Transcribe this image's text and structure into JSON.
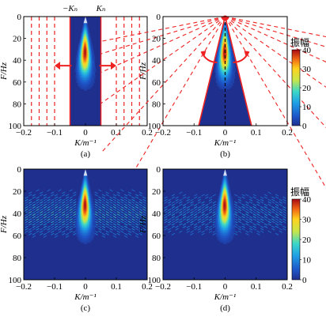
{
  "chart_data": [
    {
      "type": "heatmap",
      "panel_label": "(a)",
      "xlabel": "K/m⁻¹",
      "ylabel": "F/Hz",
      "xlim": [
        -0.2,
        0.2
      ],
      "ylim": [
        0,
        100
      ],
      "y_inverted": true,
      "xticks": [
        -0.2,
        -0.1,
        0,
        0.1,
        0.2
      ],
      "xtick_labels": [
        "−0.2",
        "−0.1",
        "0",
        "0.1",
        "0.2"
      ],
      "yticks": [
        0,
        20,
        40,
        60,
        80,
        100
      ],
      "top_labels": [
        "−Kₙ",
        "Kₙ"
      ],
      "filter": "rectangular",
      "pass_band_K": [
        -0.05,
        0.05
      ],
      "dashed_lines_K": [
        -0.175,
        -0.15,
        -0.125,
        -0.1,
        0.1,
        0.125,
        0.15,
        0.175
      ],
      "dashed_color": "#ee2222",
      "arrows": "outward, left and right at F = 45"
    },
    {
      "type": "heatmap",
      "panel_label": "(b)",
      "xlabel": "K/m⁻¹",
      "ylabel": "F/Hz",
      "xlim": [
        -0.2,
        0.2
      ],
      "ylim": [
        0,
        100
      ],
      "y_inverted": true,
      "xticks": [
        -0.2,
        -0.1,
        0,
        0.1,
        0.2
      ],
      "xtick_labels": [
        "−0.2",
        "−0.1",
        "0",
        "0.1",
        "0.2"
      ],
      "yticks": [
        0,
        20,
        40,
        60,
        80,
        100
      ],
      "filter": "fan (triangular)",
      "fan_edge_K_at_F100": [
        -0.085,
        0.085
      ],
      "dashed_color": "#ee2222",
      "center_line_color": "#000000",
      "arrows": "rotating, both sides near F = 35",
      "colorbar": {
        "label": "振幅",
        "range": [
          0,
          40
        ],
        "ticks": [
          0,
          10,
          20,
          30,
          40
        ]
      }
    },
    {
      "type": "heatmap",
      "panel_label": "(c)",
      "xlabel": "K/m⁻¹",
      "ylabel": "F/Hz",
      "xlim": [
        -0.2,
        0.2
      ],
      "ylim": [
        0,
        100
      ],
      "y_inverted": true,
      "xticks": [
        -0.2,
        -0.1,
        0,
        0.1,
        0.2
      ],
      "xtick_labels": [
        "−0.2",
        "−0.1",
        "0",
        "0.1",
        "0.2"
      ],
      "yticks": [
        0,
        20,
        40,
        60,
        80,
        100
      ]
    },
    {
      "type": "heatmap",
      "panel_label": "(d)",
      "xlabel": "K/m⁻¹",
      "ylabel": "F/Hz",
      "xlim": [
        -0.2,
        0.2
      ],
      "ylim": [
        0,
        100
      ],
      "y_inverted": true,
      "xticks": [
        -0.2,
        -0.1,
        0,
        0.1,
        0.2
      ],
      "xtick_labels": [
        "−0.2",
        "−0.1",
        "0",
        "0.1",
        "0.2"
      ],
      "yticks": [
        0,
        20,
        40,
        60,
        80,
        100
      ],
      "colorbar": {
        "label": "振幅",
        "range": [
          0,
          40
        ],
        "ticks": [
          0,
          10,
          20,
          30,
          40
        ]
      }
    }
  ],
  "colors": {
    "background_blue": "#1f2f8e",
    "accent_red": "#ee2222"
  }
}
